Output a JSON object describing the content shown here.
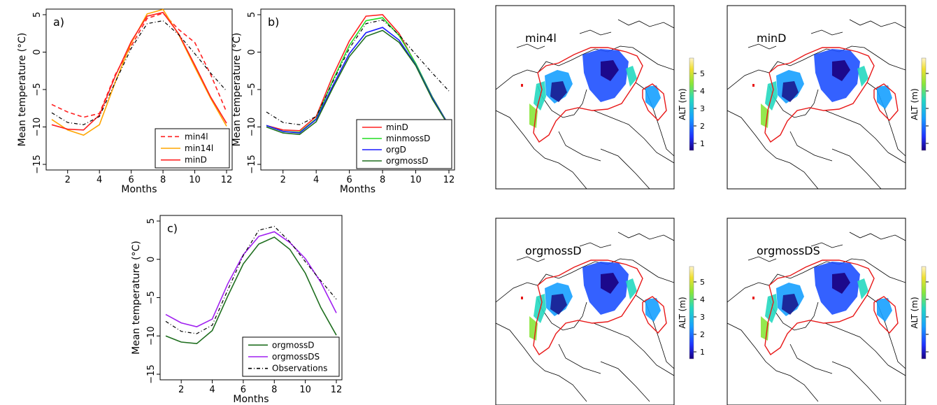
{
  "colors": {
    "min4l": "#ff2020",
    "min14l": "#ffa500",
    "minD": "#ff2020",
    "minmossD": "#22dd22",
    "orgD": "#1a1aff",
    "orgmossD": "#1e6e1e",
    "orgmossDS": "#a020f0",
    "Observations": "#000000",
    "permafrost_outline": "#e81818"
  },
  "chart_data": [
    {
      "type": "line",
      "panel_label": "a)",
      "xlabel": "Months",
      "ylabel": "Mean temperature (°C)",
      "xlim": [
        1,
        12
      ],
      "ylim": [
        -15,
        5
      ],
      "xticks": [
        2,
        4,
        6,
        8,
        10,
        12
      ],
      "yticks": [
        -15,
        -10,
        -5,
        0,
        5
      ],
      "legend_position": "bottom-right",
      "x": [
        1,
        2,
        3,
        4,
        5,
        6,
        7,
        8,
        9,
        10,
        11,
        12
      ],
      "series": [
        {
          "name": "min4l",
          "style": "dashed",
          "values": [
            -7.0,
            -8.0,
            -8.7,
            -8.2,
            -3.0,
            0.8,
            4.5,
            5.2,
            3.0,
            1.3,
            -3.0,
            -8.0
          ]
        },
        {
          "name": "min14l",
          "style": "solid",
          "values": [
            -9.0,
            -10.4,
            -11.1,
            -9.7,
            -4.0,
            1.2,
            5.1,
            5.7,
            2.3,
            -2.0,
            -6.2,
            -9.9
          ]
        },
        {
          "name": "minD",
          "style": "solid",
          "values": [
            -9.7,
            -10.3,
            -10.4,
            -8.4,
            -3.2,
            1.4,
            4.8,
            5.3,
            2.4,
            -1.7,
            -6.0,
            -9.5
          ]
        },
        {
          "name": "",
          "style": "dashdot",
          "values": [
            -8.1,
            -9.4,
            -9.7,
            -8.6,
            -4.0,
            0.5,
            3.8,
            4.2,
            2.3,
            -0.2,
            -2.8,
            -5.2
          ]
        }
      ]
    },
    {
      "type": "line",
      "panel_label": "b)",
      "xlabel": "Months",
      "ylabel": "Mean temperature (°C)",
      "xlim": [
        1,
        12
      ],
      "ylim": [
        -15,
        5
      ],
      "xticks": [
        2,
        4,
        6,
        8,
        10,
        12
      ],
      "yticks": [
        -15,
        -10,
        -5,
        0,
        5
      ],
      "legend_position": "bottom-right",
      "x": [
        1,
        2,
        3,
        4,
        5,
        6,
        7,
        8,
        9,
        10,
        11,
        12
      ],
      "series": [
        {
          "name": "minD",
          "style": "solid",
          "values": [
            -9.8,
            -10.4,
            -10.5,
            -8.6,
            -3.2,
            1.5,
            4.8,
            5.0,
            2.5,
            -1.6,
            -6.0,
            -9.8
          ]
        },
        {
          "name": "minmossD",
          "style": "solid",
          "values": [
            -9.8,
            -10.6,
            -10.7,
            -8.9,
            -3.8,
            0.9,
            4.2,
            4.6,
            2.2,
            -1.5,
            -6.0,
            -9.8
          ]
        },
        {
          "name": "orgD",
          "style": "solid",
          "values": [
            -9.8,
            -10.6,
            -10.8,
            -9.0,
            -4.5,
            -0.2,
            2.6,
            3.3,
            1.6,
            -1.7,
            -6.1,
            -9.8
          ]
        },
        {
          "name": "orgmossD",
          "style": "solid",
          "values": [
            -10.0,
            -10.8,
            -11.0,
            -9.3,
            -4.8,
            -0.6,
            2.1,
            2.9,
            1.3,
            -1.8,
            -6.3,
            -9.9
          ]
        },
        {
          "name": "",
          "style": "dashdot",
          "values": [
            -8.0,
            -9.4,
            -9.7,
            -8.6,
            -4.0,
            0.5,
            3.8,
            4.3,
            2.3,
            -0.3,
            -2.8,
            -5.2
          ]
        }
      ]
    },
    {
      "type": "line",
      "panel_label": "c)",
      "xlabel": "Months",
      "ylabel": "Mean temperature (°C)",
      "xlim": [
        1,
        12
      ],
      "ylim": [
        -15,
        5
      ],
      "xticks": [
        2,
        4,
        6,
        8,
        10,
        12
      ],
      "yticks": [
        -15,
        -10,
        -5,
        0,
        5
      ],
      "legend_position": "bottom-right",
      "x": [
        1,
        2,
        3,
        4,
        5,
        6,
        7,
        8,
        9,
        10,
        11,
        12
      ],
      "series": [
        {
          "name": "orgmossD",
          "style": "solid",
          "values": [
            -10.0,
            -10.8,
            -11.0,
            -9.3,
            -4.8,
            -0.6,
            2.0,
            2.9,
            1.3,
            -1.8,
            -6.3,
            -9.9
          ]
        },
        {
          "name": "orgmossDS",
          "style": "solid",
          "values": [
            -7.2,
            -8.3,
            -8.8,
            -7.8,
            -3.2,
            0.6,
            3.0,
            3.6,
            2.2,
            0.1,
            -3.0,
            -7.0
          ]
        },
        {
          "name": "Observations",
          "style": "dashdot",
          "values": [
            -8.1,
            -9.4,
            -9.7,
            -8.6,
            -4.0,
            0.5,
            3.8,
            4.3,
            2.3,
            -0.3,
            -2.8,
            -5.2
          ]
        }
      ]
    }
  ],
  "maps": [
    {
      "title": "min4l",
      "colorbar_label": "ALT (m)",
      "colorbar_ticks": [
        "1",
        "2",
        "3",
        "4",
        "5"
      ]
    },
    {
      "title": "minD",
      "colorbar_label": "ALT (m)",
      "colorbar_ticks": [
        "",
        "",
        "",
        "",
        ""
      ]
    },
    {
      "title": "orgmossD",
      "colorbar_label": "ALT (m)",
      "colorbar_ticks": [
        "1",
        "2",
        "3",
        "4",
        "5"
      ]
    },
    {
      "title": "orgmossDS",
      "colorbar_label": "ALT (m)",
      "colorbar_ticks": [
        "",
        "",
        "",
        "",
        ""
      ]
    }
  ]
}
